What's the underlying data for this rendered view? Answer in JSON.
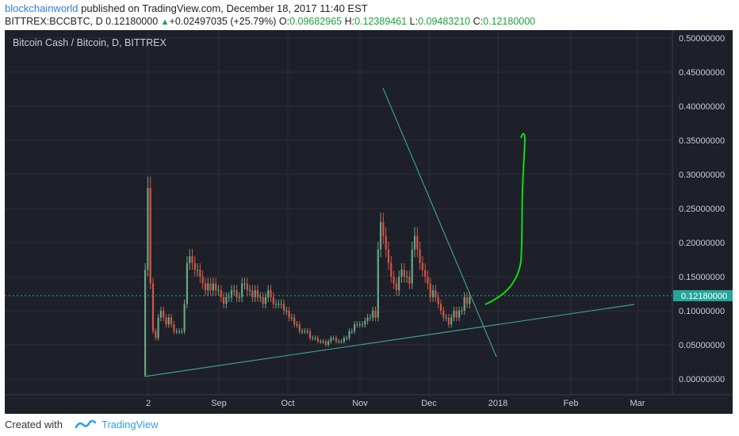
{
  "header": {
    "author": "blockchainworld",
    "published": "published on TradingView.com, December 18, 2017 11:40 EST",
    "symbol": "BITTREX:BCCBTC, D",
    "last": "0.12180000",
    "change_arrow": "▲",
    "change": "+0.02497035 (+25.79%)",
    "o_label": "O:",
    "o_value": "0.09682965",
    "h_label": "H:",
    "h_value": "0.12389461",
    "l_label": "L:",
    "l_value": "0.09483210",
    "c_label": "C:",
    "c_value": "0.12180000"
  },
  "chart_title": "Bitcoin Cash / Bitcoin, D, BITTREX",
  "price_tag": "0.12180000",
  "footer": {
    "created_with": "Created with",
    "brand": "TradingView"
  },
  "colors": {
    "background": "#1d2028",
    "up_candle": "#6ba583",
    "down_candle": "#d75442",
    "trendline": "#3e9d8e",
    "drawing": "#11dd11",
    "price_line": "#26a69a"
  },
  "chart_data": {
    "type": "candlestick",
    "title": "Bitcoin Cash / Bitcoin, D, BITTREX",
    "x_tick_labels": [
      "2",
      "Sep",
      "Oct",
      "Nov",
      "Dec",
      "2018",
      "Feb",
      "Mar"
    ],
    "y_tick_labels": [
      "0.50000000",
      "0.45000000",
      "0.40000000",
      "0.35000000",
      "0.30000000",
      "0.25000000",
      "0.20000000",
      "0.15000000",
      "0.10000000",
      "0.05000000",
      "0.00000000"
    ],
    "ylim": [
      0,
      0.5
    ],
    "grid": true,
    "current_price": 0.1218,
    "close_approx": [
      0.16,
      0.28,
      0.14,
      0.07,
      0.06,
      0.09,
      0.1,
      0.09,
      0.08,
      0.09,
      0.08,
      0.07,
      0.07,
      0.07,
      0.07,
      0.11,
      0.17,
      0.18,
      0.17,
      0.16,
      0.16,
      0.15,
      0.14,
      0.13,
      0.14,
      0.13,
      0.14,
      0.13,
      0.13,
      0.12,
      0.11,
      0.12,
      0.12,
      0.13,
      0.13,
      0.12,
      0.12,
      0.14,
      0.14,
      0.13,
      0.13,
      0.12,
      0.13,
      0.12,
      0.12,
      0.11,
      0.12,
      0.13,
      0.12,
      0.11,
      0.11,
      0.11,
      0.11,
      0.1,
      0.1,
      0.09,
      0.09,
      0.08,
      0.08,
      0.07,
      0.07,
      0.07,
      0.07,
      0.06,
      0.06,
      0.06,
      0.055,
      0.055,
      0.055,
      0.05,
      0.055,
      0.06,
      0.06,
      0.055,
      0.055,
      0.055,
      0.06,
      0.06,
      0.07,
      0.07,
      0.08,
      0.08,
      0.08,
      0.08,
      0.085,
      0.09,
      0.09,
      0.1,
      0.09,
      0.19,
      0.23,
      0.21,
      0.19,
      0.17,
      0.15,
      0.14,
      0.13,
      0.15,
      0.16,
      0.15,
      0.15,
      0.14,
      0.19,
      0.21,
      0.19,
      0.17,
      0.16,
      0.15,
      0.14,
      0.12,
      0.13,
      0.12,
      0.11,
      0.1,
      0.09,
      0.09,
      0.08,
      0.09,
      0.1,
      0.09,
      0.1,
      0.1,
      0.12,
      0.11,
      0.12
    ]
  }
}
